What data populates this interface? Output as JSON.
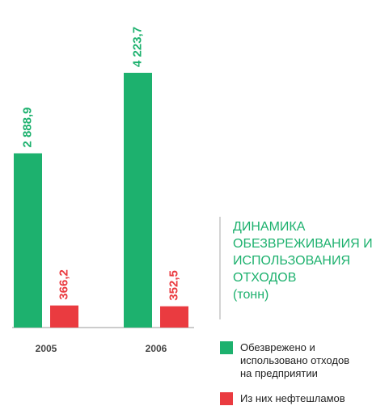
{
  "chart_data": {
    "type": "bar",
    "title": "ДИНАМИКА ОБЕЗВРЕЖИВАНИЯ И ИСПОЛЬЗОВАНИЯ ОТХОДОВ",
    "subtitle": "(тонн)",
    "categories": [
      "2005",
      "2006"
    ],
    "series": [
      {
        "name": "Обезврежено и использовано отходов на предприятии",
        "color": "#1db16e",
        "values": [
          2888.9,
          4223.7
        ],
        "value_labels": [
          "2 888,9",
          "4 223,7"
        ]
      },
      {
        "name": "Из них нефтешламов",
        "color": "#ea3b40",
        "values": [
          366.2,
          352.5
        ],
        "value_labels": [
          "366,2",
          "352,5"
        ]
      }
    ]
  }
}
